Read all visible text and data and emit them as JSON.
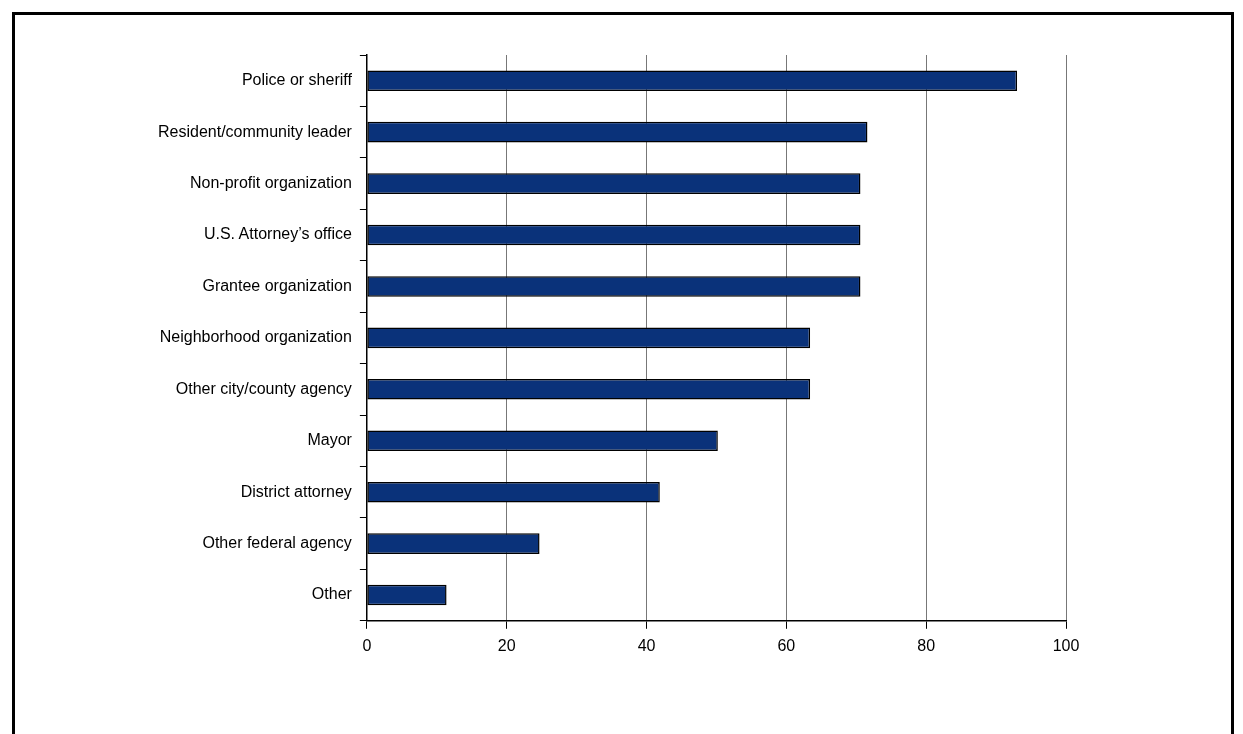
{
  "chart_data": {
    "type": "bar",
    "orientation": "horizontal",
    "categories": [
      "Police or sheriff",
      "Resident/community leader",
      "Non-profit organization",
      "U.S. Attorney’s office",
      "Grantee organization",
      "Neighborhood organization",
      "Other city/county agency",
      "Mayor",
      "District attorney",
      "Other federal agency",
      "Other"
    ],
    "values": [
      93,
      71.6,
      70.6,
      70.6,
      70.6,
      63.4,
      63.4,
      50.2,
      41.9,
      24.7,
      11.4
    ],
    "color": "#0a327a",
    "xlim": [
      0,
      100
    ],
    "xticks": [
      0,
      20,
      40,
      60,
      80,
      100
    ],
    "grid": "x",
    "legend": false
  }
}
